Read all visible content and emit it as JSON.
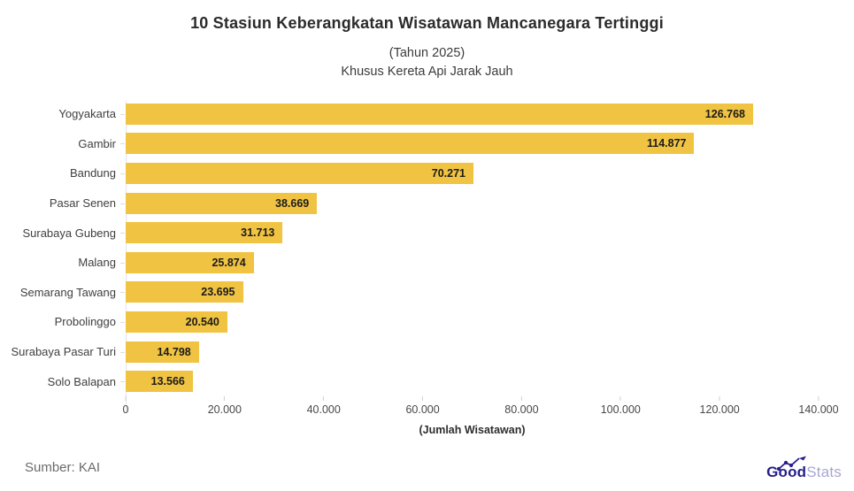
{
  "header": {
    "title": "10 Stasiun Keberangkatan Wisatawan Mancanegara Tertinggi",
    "subtitle_year": "(Tahun 2025)",
    "subtitle_note": "Khusus Kereta Api Jarak Jauh"
  },
  "chart_data": {
    "type": "bar",
    "orientation": "horizontal",
    "title": "10 Stasiun Keberangkatan Wisatawan Mancanegara Tertinggi",
    "subtitle": "(Tahun 2025) Khusus Kereta Api Jarak Jauh",
    "categories": [
      "Yogyakarta",
      "Gambir",
      "Bandung",
      "Pasar Senen",
      "Surabaya Gubeng",
      "Malang",
      "Semarang Tawang",
      "Probolinggo",
      "Surabaya Pasar Turi",
      "Solo Balapan"
    ],
    "values": [
      126768,
      114877,
      70271,
      38669,
      31713,
      25874,
      23695,
      20540,
      14798,
      13566
    ],
    "value_labels": [
      "126.768",
      "114.877",
      "70.271",
      "38.669",
      "31.713",
      "25.874",
      "23.695",
      "20.540",
      "14.798",
      "13.566"
    ],
    "xlabel": "(Jumlah Wisatawan)",
    "ylabel": "",
    "x_ticks": [
      "0",
      "20.000",
      "40.000",
      "60.000",
      "80.000",
      "100.000",
      "120.000",
      "140.000"
    ],
    "xlim": [
      0,
      140000
    ],
    "grid": false,
    "legend": false,
    "bar_color": "#F0C342"
  },
  "footer": {
    "source": "Sumber: KAI",
    "logo": {
      "part_bold": "Good",
      "part_light": "Stats",
      "color_bold": "#26208C",
      "color_light": "#A8A6D3"
    }
  }
}
